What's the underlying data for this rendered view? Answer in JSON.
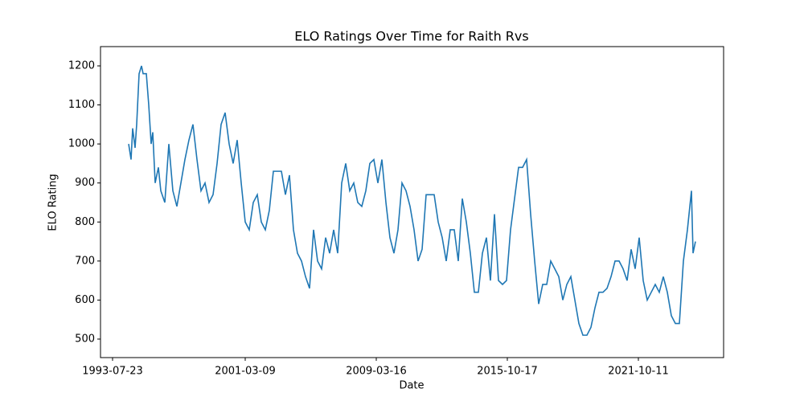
{
  "chart_data": {
    "type": "line",
    "title": "ELO Ratings Over Time for Raith Rvs",
    "xlabel": "Date",
    "ylabel": "ELO Rating",
    "x": [
      20,
      23,
      25,
      28,
      30,
      33,
      36,
      38,
      42,
      45,
      48,
      50,
      53,
      57,
      60,
      65,
      70,
      75,
      80,
      85,
      90,
      95,
      100,
      105,
      110,
      115,
      120,
      125,
      130,
      135,
      140,
      145,
      150,
      155,
      160,
      165,
      170,
      175,
      180,
      185,
      190,
      195,
      200,
      205,
      210,
      215,
      220,
      225,
      230,
      235,
      240,
      245,
      250,
      255,
      260,
      265,
      270,
      275,
      280,
      285,
      290,
      295,
      300,
      305,
      310,
      315,
      320,
      325,
      330,
      335,
      340,
      345,
      350,
      355,
      360,
      365,
      370,
      375,
      380,
      385,
      390,
      395,
      400,
      405,
      410,
      415,
      420,
      425,
      430,
      435,
      440,
      445,
      450,
      455,
      460,
      465,
      470,
      475,
      480,
      485,
      490,
      495,
      500,
      505,
      510,
      515,
      520,
      525,
      530,
      535,
      540,
      545,
      550,
      555,
      560,
      565,
      570,
      575,
      580,
      585,
      590,
      595,
      600,
      605,
      610,
      615,
      620,
      625,
      630,
      635,
      640,
      645,
      650,
      655,
      660,
      665,
      670,
      675,
      680,
      685,
      690,
      695,
      700,
      705,
      710,
      715,
      720,
      722,
      725
    ],
    "series": [
      {
        "name": "ELO Rating",
        "color": "#1f77b4",
        "values": [
          1000,
          960,
          1040,
          990,
          1050,
          1180,
          1200,
          1180,
          1180,
          1100,
          1000,
          1030,
          900,
          940,
          880,
          850,
          1000,
          880,
          840,
          900,
          960,
          1010,
          1050,
          960,
          880,
          900,
          850,
          870,
          950,
          1050,
          1080,
          1000,
          950,
          1010,
          900,
          800,
          780,
          850,
          870,
          800,
          780,
          830,
          930,
          930,
          930,
          870,
          920,
          780,
          720,
          700,
          660,
          630,
          780,
          700,
          680,
          760,
          720,
          780,
          720,
          900,
          950,
          880,
          900,
          850,
          840,
          880,
          950,
          960,
          900,
          960,
          850,
          760,
          720,
          780,
          900,
          880,
          840,
          780,
          700,
          730,
          870,
          870,
          870,
          800,
          760,
          700,
          780,
          780,
          700,
          860,
          800,
          720,
          620,
          620,
          720,
          760,
          650,
          820,
          650,
          640,
          650,
          780,
          860,
          940,
          940,
          960,
          820,
          700,
          590,
          640,
          640,
          700,
          680,
          660,
          600,
          640,
          660,
          600,
          540,
          510,
          510,
          530,
          580,
          620,
          620,
          630,
          660,
          700,
          700,
          680,
          650,
          730,
          680,
          760,
          650,
          600,
          620,
          640,
          620,
          660,
          620,
          560,
          540,
          540,
          700,
          780,
          880,
          720,
          750
        ]
      }
    ],
    "xlim": [
      -15,
      760
    ],
    "xticks": [
      {
        "value": 0,
        "label": "1993-07-23"
      },
      {
        "value": 165,
        "label": "2001-03-09"
      },
      {
        "value": 328,
        "label": "2009-03-16"
      },
      {
        "value": 491,
        "label": "2015-10-17"
      },
      {
        "value": 654,
        "label": "2021-10-11"
      }
    ],
    "ylim": [
      452.6,
      1249.4
    ],
    "yticks": [
      500,
      600,
      700,
      800,
      900,
      1000,
      1100,
      1200
    ]
  }
}
